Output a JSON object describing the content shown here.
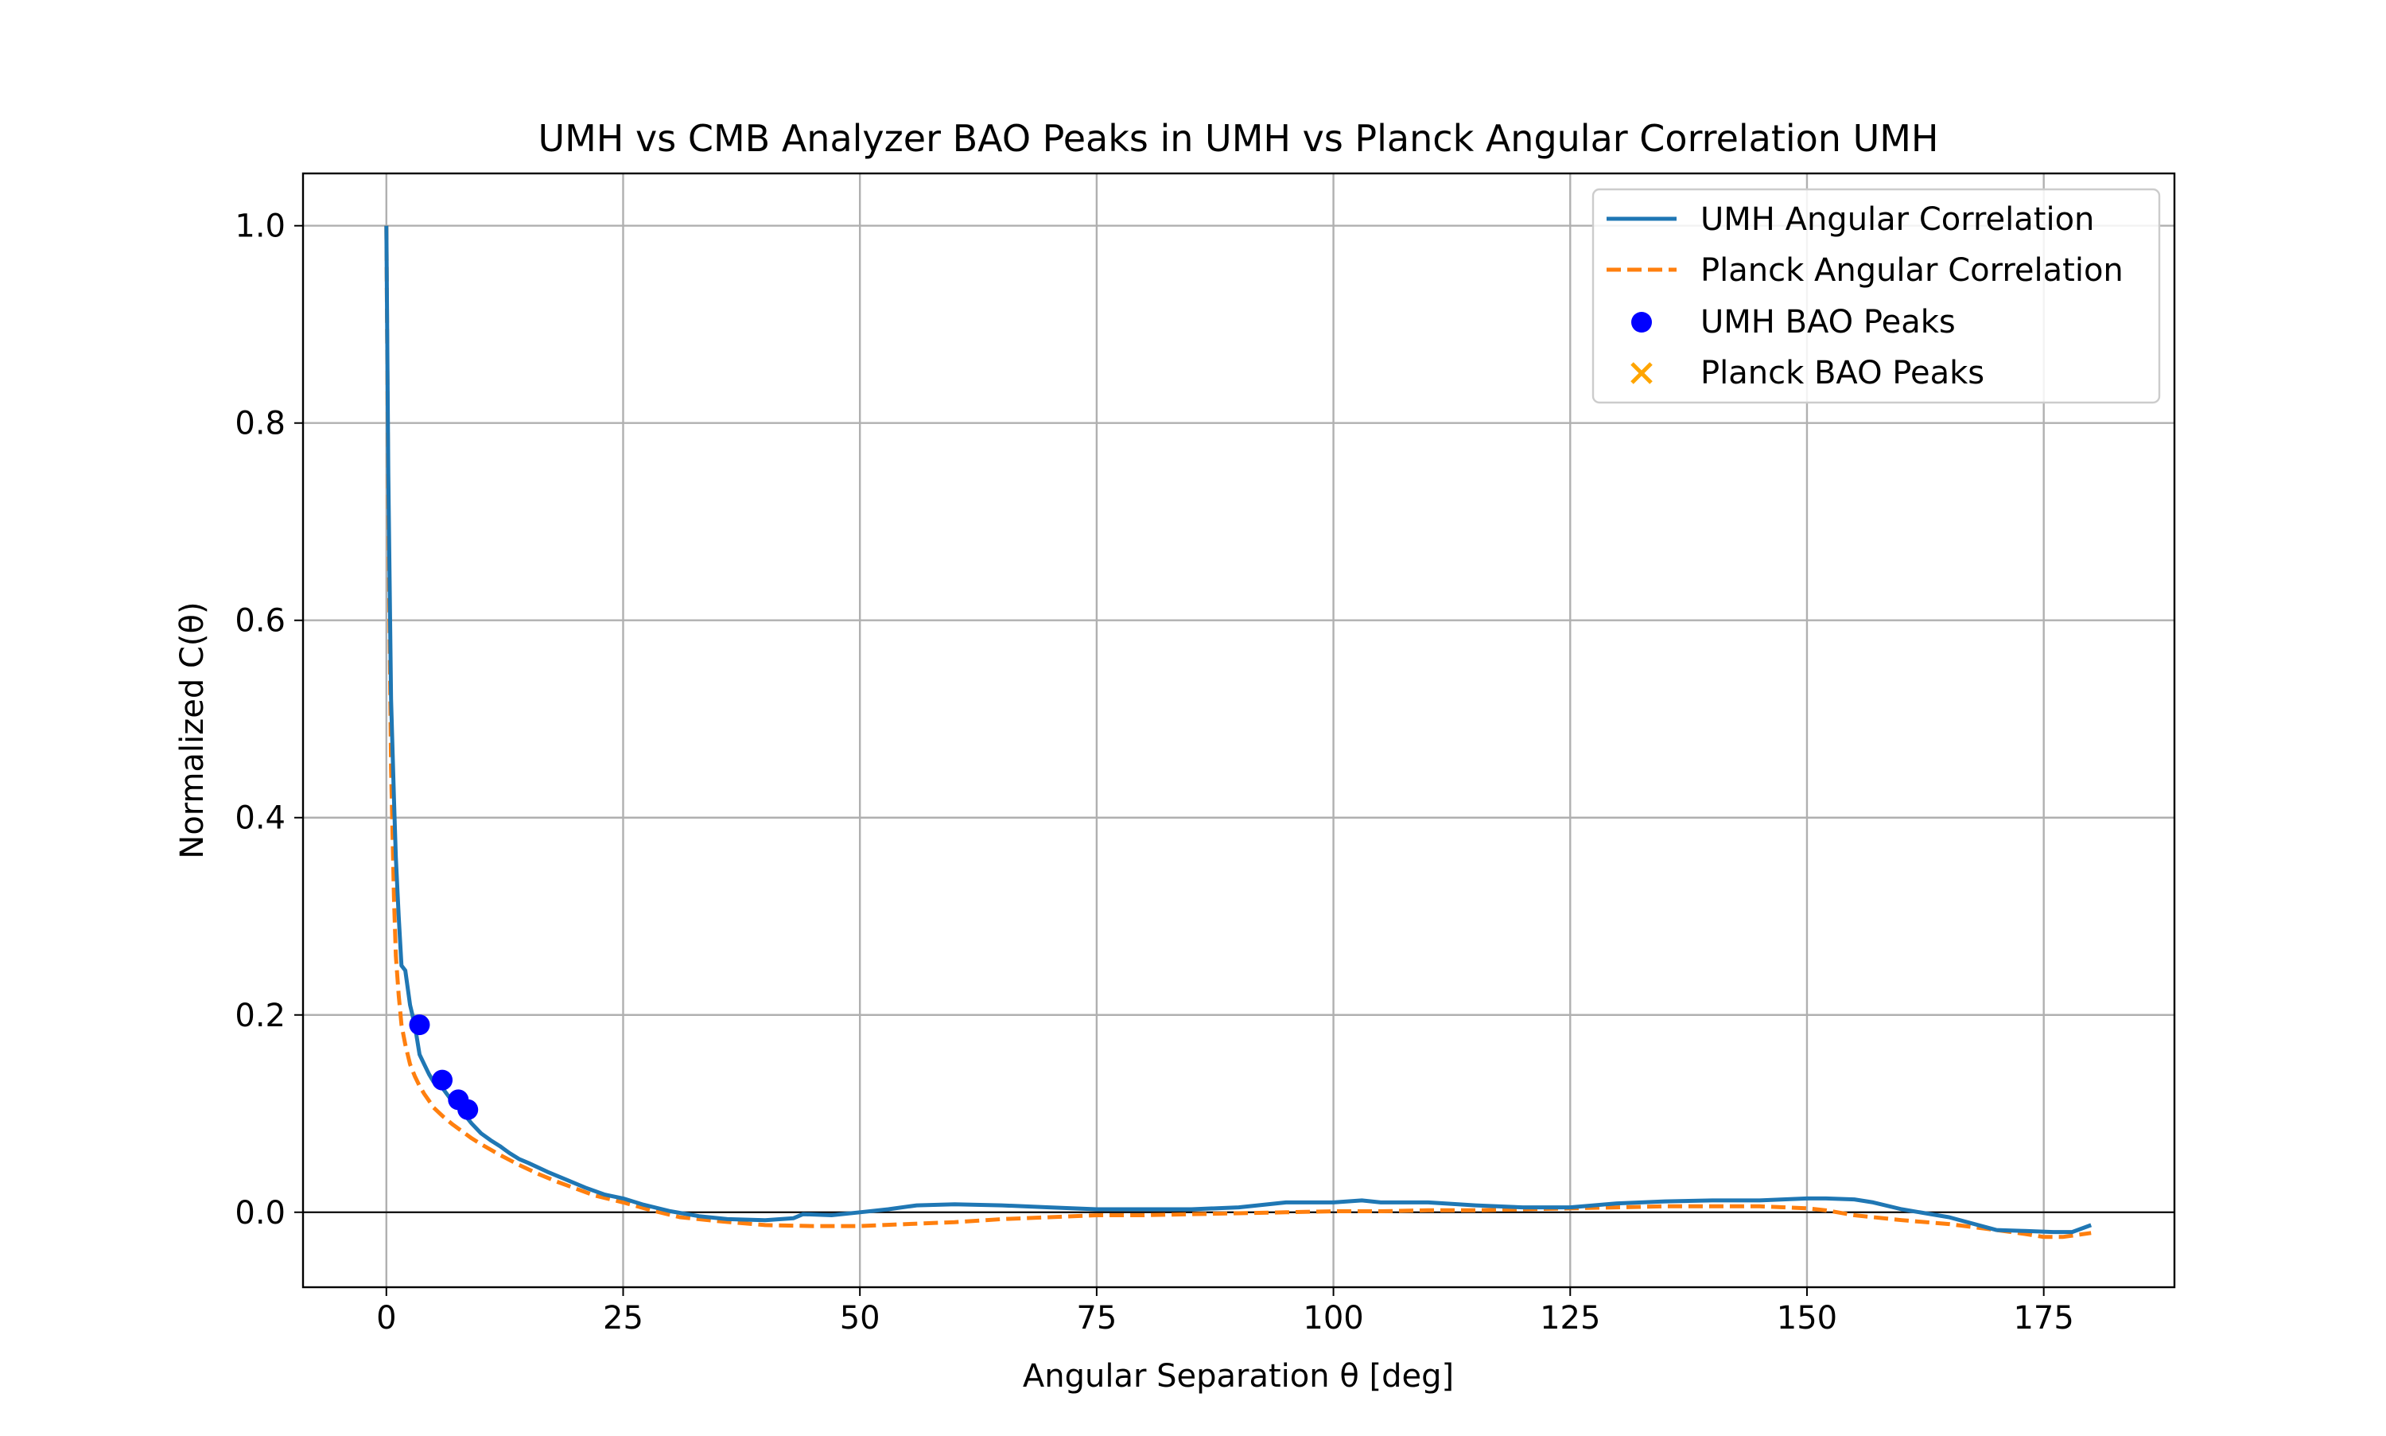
{
  "chart_data": {
    "type": "line",
    "title": "UMH vs CMB Analyzer BAO Peaks in UMH vs Planck Angular Correlation UMH",
    "xlabel": "Angular Separation θ [deg]",
    "ylabel": "Normalized C(θ)",
    "xlim": [
      -8.8,
      188.8
    ],
    "ylim": [
      -0.076,
      1.053
    ],
    "xticks": [
      0,
      25,
      50,
      75,
      100,
      125,
      150,
      175
    ],
    "yticks": [
      0.0,
      0.2,
      0.4,
      0.6,
      0.8,
      1.0
    ],
    "xtick_labels": [
      "0",
      "25",
      "50",
      "75",
      "100",
      "125",
      "150",
      "175"
    ],
    "ytick_labels": [
      "0.0",
      "0.2",
      "0.4",
      "0.6",
      "0.8",
      "1.0"
    ],
    "grid": true,
    "zero_line": 0.0,
    "legend_position": "top-right",
    "series": [
      {
        "name": "UMH Angular Correlation",
        "style": "solid",
        "color": "#1f77b4",
        "x": [
          0,
          0.2,
          0.5,
          0.8,
          1,
          1.3,
          1.6,
          2,
          2.5,
          3,
          3.5,
          4,
          4.5,
          5,
          6,
          7,
          8,
          9,
          10,
          11,
          12,
          13,
          14,
          15,
          17,
          19,
          21,
          23,
          25,
          27,
          30,
          33,
          36,
          40,
          43,
          44,
          47,
          50,
          53,
          56,
          60,
          65,
          70,
          75,
          80,
          85,
          90,
          95,
          100,
          103,
          105,
          110,
          115,
          120,
          125,
          130,
          135,
          140,
          145,
          150,
          152,
          155,
          157,
          160,
          165,
          170,
          173,
          176,
          178,
          180
        ],
        "y": [
          1.0,
          0.75,
          0.52,
          0.42,
          0.36,
          0.3,
          0.25,
          0.245,
          0.21,
          0.19,
          0.16,
          0.15,
          0.14,
          0.132,
          0.125,
          0.112,
          0.102,
          0.09,
          0.08,
          0.073,
          0.067,
          0.06,
          0.054,
          0.05,
          0.041,
          0.033,
          0.025,
          0.018,
          0.014,
          0.008,
          0.001,
          -0.004,
          -0.007,
          -0.008,
          -0.006,
          -0.002,
          -0.003,
          0.0,
          0.003,
          0.007,
          0.008,
          0.007,
          0.005,
          0.003,
          0.003,
          0.003,
          0.005,
          0.01,
          0.01,
          0.012,
          0.01,
          0.01,
          0.007,
          0.005,
          0.005,
          0.009,
          0.011,
          0.012,
          0.012,
          0.014,
          0.014,
          0.013,
          0.01,
          0.003,
          -0.005,
          -0.018,
          -0.019,
          -0.02,
          -0.02,
          -0.013
        ]
      },
      {
        "name": "Planck Angular Correlation",
        "style": "dashed",
        "color": "#ff7f0e",
        "x": [
          0,
          0.2,
          0.5,
          0.8,
          1,
          1.3,
          1.6,
          2,
          2.5,
          3,
          3.5,
          4,
          4.5,
          5,
          6,
          7,
          8,
          9,
          10,
          12,
          14,
          16,
          18,
          20,
          22,
          25,
          28,
          31,
          35,
          40,
          45,
          50,
          55,
          60,
          65,
          70,
          75,
          80,
          85,
          90,
          95,
          100,
          105,
          110,
          115,
          120,
          125,
          130,
          135,
          140,
          145,
          150,
          152,
          155,
          160,
          165,
          170,
          173,
          175,
          177,
          180
        ],
        "y": [
          1.0,
          0.72,
          0.45,
          0.32,
          0.26,
          0.22,
          0.19,
          0.17,
          0.15,
          0.138,
          0.128,
          0.12,
          0.113,
          0.106,
          0.097,
          0.089,
          0.082,
          0.075,
          0.069,
          0.058,
          0.048,
          0.039,
          0.031,
          0.024,
          0.017,
          0.01,
          0.002,
          -0.005,
          -0.009,
          -0.013,
          -0.014,
          -0.014,
          -0.012,
          -0.01,
          -0.007,
          -0.005,
          -0.003,
          -0.003,
          -0.002,
          -0.001,
          0.0,
          0.001,
          0.001,
          0.002,
          0.002,
          0.003,
          0.004,
          0.005,
          0.006,
          0.006,
          0.006,
          0.004,
          0.002,
          -0.003,
          -0.008,
          -0.012,
          -0.018,
          -0.022,
          -0.025,
          -0.025,
          -0.021
        ]
      }
    ],
    "markers": [
      {
        "name": "UMH BAO Peaks",
        "symbol": "circle",
        "color": "#0000ff",
        "x": [
          3.5,
          5.9,
          7.6,
          8.6
        ],
        "y": [
          0.19,
          0.134,
          0.114,
          0.104
        ]
      },
      {
        "name": "Planck BAO Peaks",
        "symbol": "x",
        "color": "#ffa500",
        "x": [],
        "y": []
      }
    ]
  }
}
